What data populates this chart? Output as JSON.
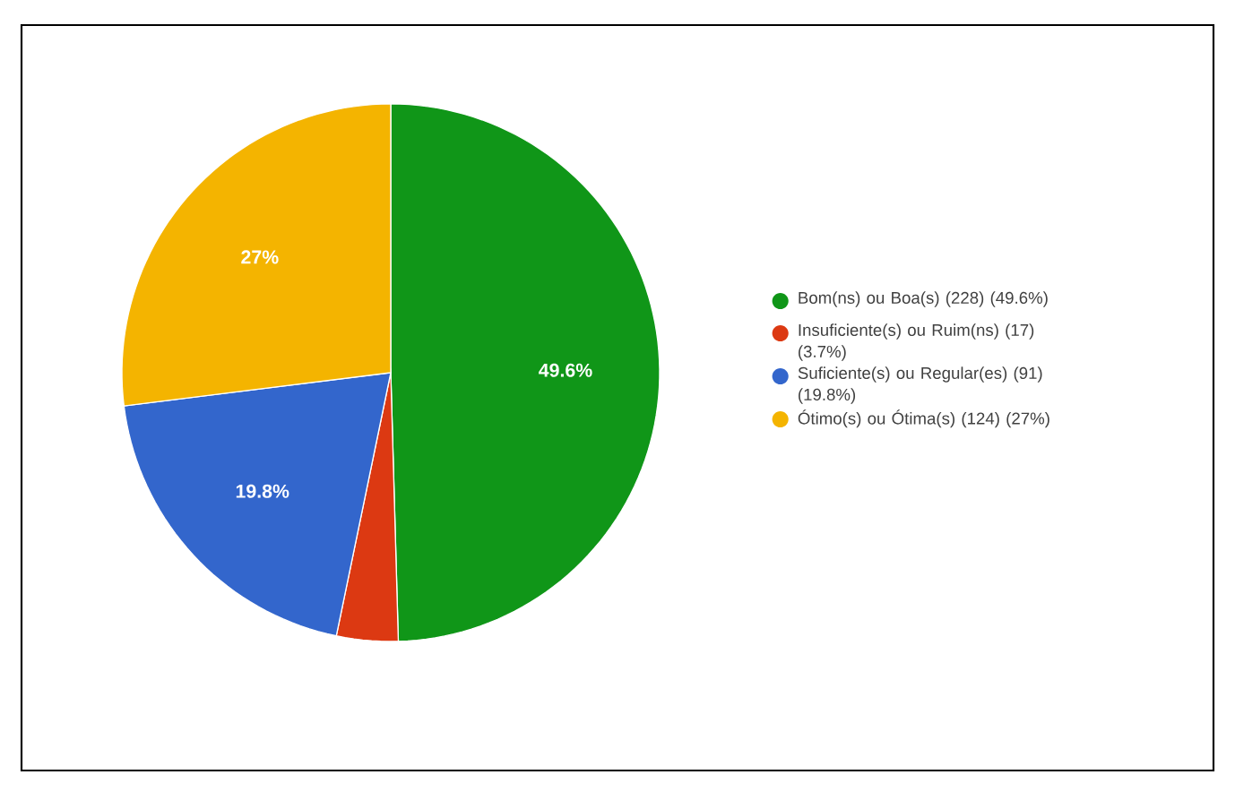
{
  "chart_data": {
    "type": "pie",
    "categories": [
      "Bom(ns) ou Boa(s) (228) (49.6%)",
      "Insuficiente(s) ou Ruim(ns) (17) (3.7%)",
      "Suficiente(s) ou Regular(es) (91) (19.8%)",
      "Ótimo(s) ou Ótima(s) (124) (27%)"
    ],
    "values": [
      49.6,
      3.7,
      19.8,
      27
    ],
    "colors": [
      "#109618",
      "#dc3912",
      "#3366cc",
      "#f4b400"
    ],
    "value_labels": [
      "49.6%",
      null,
      "19.8%",
      "27%"
    ],
    "legend": "right"
  }
}
